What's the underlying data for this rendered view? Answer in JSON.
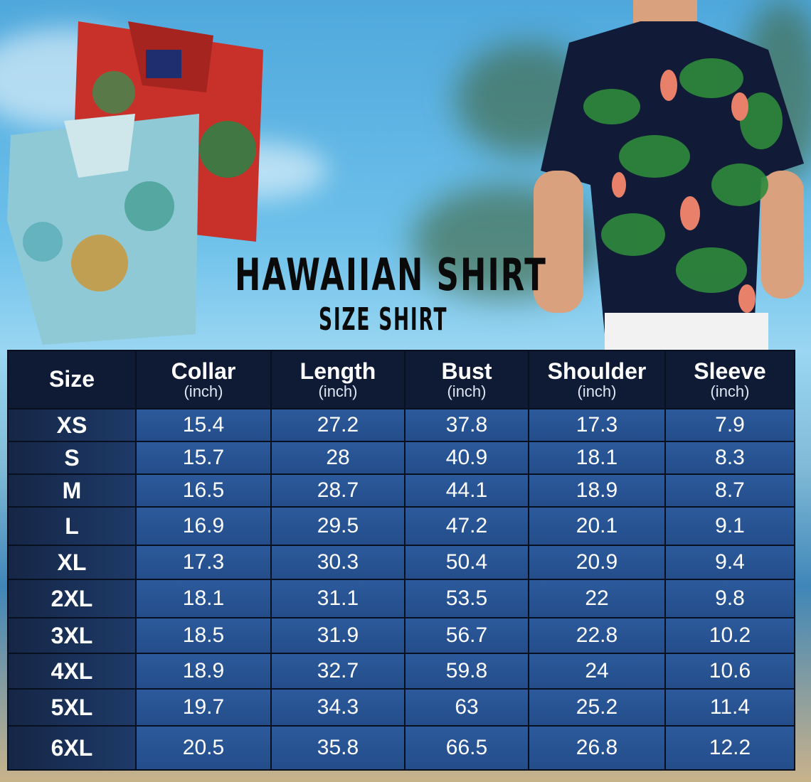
{
  "title": "HAWAIIAN SHIRT",
  "subtitle": "SIZE SHIRT",
  "colors": {
    "header_bg": "#0f1b35",
    "size_cell_bg": "#1a3058",
    "value_cell_bg": "#2a5596",
    "title_text": "#0a0a0a"
  },
  "images": [
    "folded-hawaiian-shirts-photo",
    "man-wearing-flamingo-hawaiian-shirt-photo"
  ],
  "table": {
    "headers": [
      {
        "label": "Size",
        "unit": ""
      },
      {
        "label": "Collar",
        "unit": "(inch)"
      },
      {
        "label": "Length",
        "unit": "(inch)"
      },
      {
        "label": "Bust",
        "unit": "(inch)"
      },
      {
        "label": "Shoulder",
        "unit": "(inch)"
      },
      {
        "label": "Sleeve",
        "unit": "(inch)"
      }
    ],
    "rows": [
      [
        "XS",
        "15.4",
        "27.2",
        "37.8",
        "17.3",
        "7.9"
      ],
      [
        "S",
        "15.7",
        "28",
        "40.9",
        "18.1",
        "8.3"
      ],
      [
        "M",
        "16.5",
        "28.7",
        "44.1",
        "18.9",
        "8.7"
      ],
      [
        "L",
        "16.9",
        "29.5",
        "47.2",
        "20.1",
        "9.1"
      ],
      [
        "XL",
        "17.3",
        "30.3",
        "50.4",
        "20.9",
        "9.4"
      ],
      [
        "2XL",
        "18.1",
        "31.1",
        "53.5",
        "22",
        "9.8"
      ],
      [
        "3XL",
        "18.5",
        "31.9",
        "56.7",
        "22.8",
        "10.2"
      ],
      [
        "4XL",
        "18.9",
        "32.7",
        "59.8",
        "24",
        "10.6"
      ],
      [
        "5XL",
        "19.7",
        "34.3",
        "63",
        "25.2",
        "11.4"
      ],
      [
        "6XL",
        "20.5",
        "35.8",
        "66.5",
        "26.8",
        "12.2"
      ]
    ]
  }
}
